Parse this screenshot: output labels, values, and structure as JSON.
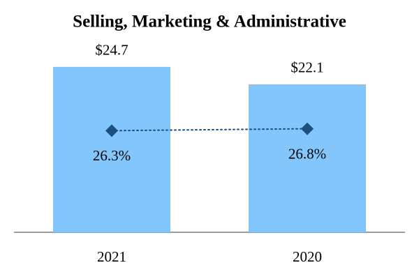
{
  "chart_data": {
    "type": "bar",
    "title": "Selling, Marketing & Administrative",
    "categories": [
      "2021",
      "2020"
    ],
    "ylim": [
      0,
      30
    ],
    "y2lim": [
      0,
      52
    ],
    "series": [
      {
        "type": "bar",
        "color": "#82c6fb",
        "values": [
          24.7,
          22.1
        ],
        "value_labels": [
          "$24.7",
          "$22.1"
        ]
      },
      {
        "type": "line",
        "axis": "y2",
        "color": "#1b4f7e",
        "values": [
          26.3,
          26.8
        ],
        "value_labels": [
          "26.3%",
          "26.8%"
        ]
      }
    ]
  }
}
